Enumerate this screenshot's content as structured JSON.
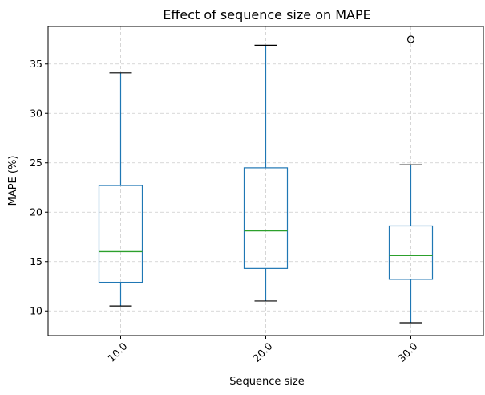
{
  "chart_data": {
    "type": "box",
    "title": "Effect of sequence size on MAPE",
    "xlabel": "Sequence size",
    "ylabel": "MAPE (%)",
    "ylim": [
      7.5,
      38.8
    ],
    "y_ticks": [
      10,
      15,
      20,
      25,
      30,
      35
    ],
    "grid": true,
    "categories": [
      "10.0",
      "20.0",
      "30.0"
    ],
    "boxes": [
      {
        "category": "10.0",
        "whisker_low": 10.5,
        "q1": 12.9,
        "median": 16.0,
        "q3": 22.7,
        "whisker_high": 34.1,
        "outliers": []
      },
      {
        "category": "20.0",
        "whisker_low": 11.0,
        "q1": 14.3,
        "median": 18.1,
        "q3": 24.5,
        "whisker_high": 36.9,
        "outliers": []
      },
      {
        "category": "30.0",
        "whisker_low": 8.8,
        "q1": 13.2,
        "median": 15.6,
        "q3": 18.6,
        "whisker_high": 24.8,
        "outliers": [
          37.5
        ]
      }
    ],
    "colors": {
      "box": "#1f77b4",
      "median": "#2ca02c",
      "whisker_cap": "#000000",
      "grid": "#cccccc",
      "outlier": "#000000"
    }
  }
}
